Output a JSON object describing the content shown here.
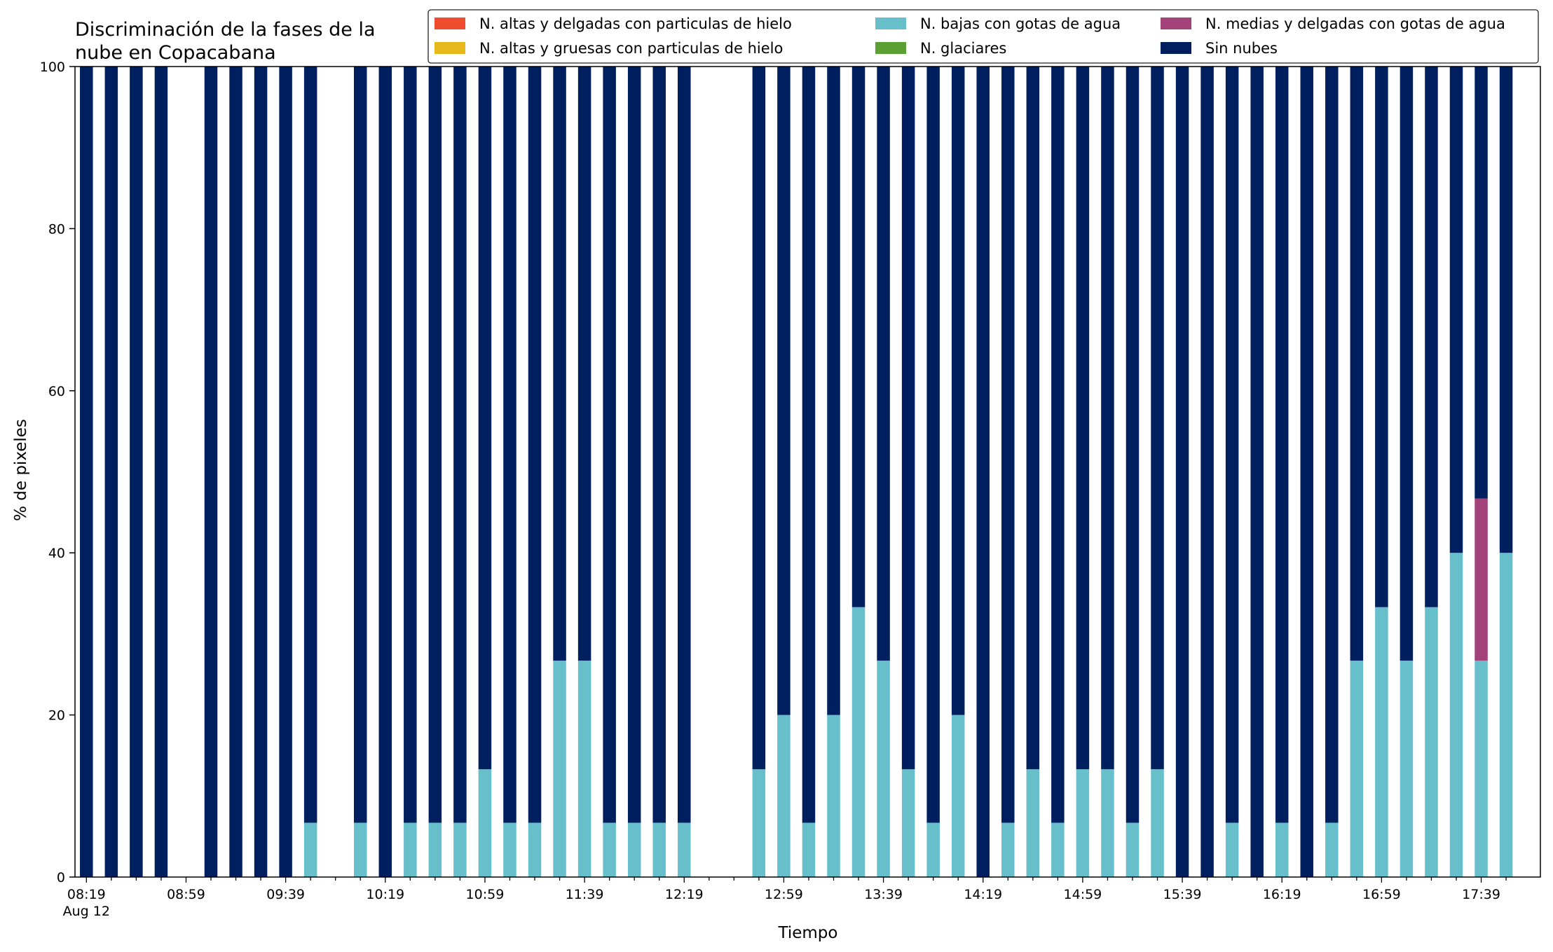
{
  "chart_data": {
    "type": "bar",
    "stacked": true,
    "title_lines": [
      "Discriminación de la fases de la",
      "nube en Copacabana"
    ],
    "xlabel": "Tiempo",
    "ylabel": "% de pixeles",
    "ylim": [
      0,
      100
    ],
    "yticks": [
      0,
      20,
      40,
      60,
      80,
      100
    ],
    "grid": false,
    "legend_position": "top-right",
    "x_start": "08:19",
    "x_step_minutes": 10,
    "x_count": 58,
    "major_tick_labels": [
      {
        "slot": 0,
        "label": "08:19",
        "sublabel": "Aug 12"
      },
      {
        "slot": 4,
        "label": "08:59"
      },
      {
        "slot": 8,
        "label": "09:39"
      },
      {
        "slot": 12,
        "label": "10:19"
      },
      {
        "slot": 16,
        "label": "10:59"
      },
      {
        "slot": 20,
        "label": "11:39"
      },
      {
        "slot": 24,
        "label": "12:19"
      },
      {
        "slot": 28,
        "label": "12:59"
      },
      {
        "slot": 32,
        "label": "13:39"
      },
      {
        "slot": 36,
        "label": "14:19"
      },
      {
        "slot": 40,
        "label": "14:59"
      },
      {
        "slot": 44,
        "label": "15:39"
      },
      {
        "slot": 48,
        "label": "16:19"
      },
      {
        "slot": 52,
        "label": "16:59"
      },
      {
        "slot": 56,
        "label": "17:39"
      }
    ],
    "series": [
      {
        "name": "N. altas y delgadas con particulas de hielo",
        "color": "#ee4d2d"
      },
      {
        "name": "N. altas y gruesas con particulas de hielo",
        "color": "#e6b81b"
      },
      {
        "name": "N. bajas con gotas de agua",
        "color": "#67bfcb"
      },
      {
        "name": "N. glaciares",
        "color": "#5ba032"
      },
      {
        "name": "N. medias y delgadas con gotas de agua",
        "color": "#a2417a"
      },
      {
        "name": "Sin nubes",
        "color": "#001f5f"
      }
    ],
    "bars": [
      {
        "slot": 0,
        "bajas": 0,
        "medias": 0,
        "sin_nubes": 100
      },
      {
        "slot": 1,
        "bajas": 0,
        "medias": 0,
        "sin_nubes": 100
      },
      {
        "slot": 2,
        "bajas": 0,
        "medias": 0,
        "sin_nubes": 100
      },
      {
        "slot": 3,
        "bajas": 0,
        "medias": 0,
        "sin_nubes": 100
      },
      {
        "slot": 5,
        "bajas": 0,
        "medias": 0,
        "sin_nubes": 100
      },
      {
        "slot": 6,
        "bajas": 0,
        "medias": 0,
        "sin_nubes": 100
      },
      {
        "slot": 7,
        "bajas": 0,
        "medias": 0,
        "sin_nubes": 100
      },
      {
        "slot": 8,
        "bajas": 0,
        "medias": 0,
        "sin_nubes": 100
      },
      {
        "slot": 9,
        "bajas": 6.7,
        "medias": 0,
        "sin_nubes": 93.3
      },
      {
        "slot": 11,
        "bajas": 6.7,
        "medias": 0,
        "sin_nubes": 93.3
      },
      {
        "slot": 12,
        "bajas": 0,
        "medias": 0,
        "sin_nubes": 100
      },
      {
        "slot": 13,
        "bajas": 6.7,
        "medias": 0,
        "sin_nubes": 93.3
      },
      {
        "slot": 14,
        "bajas": 6.7,
        "medias": 0,
        "sin_nubes": 93.3
      },
      {
        "slot": 15,
        "bajas": 6.7,
        "medias": 0,
        "sin_nubes": 93.3
      },
      {
        "slot": 16,
        "bajas": 13.3,
        "medias": 0,
        "sin_nubes": 86.7
      },
      {
        "slot": 17,
        "bajas": 6.7,
        "medias": 0,
        "sin_nubes": 93.3
      },
      {
        "slot": 18,
        "bajas": 6.7,
        "medias": 0,
        "sin_nubes": 93.3
      },
      {
        "slot": 19,
        "bajas": 26.7,
        "medias": 0,
        "sin_nubes": 73.3
      },
      {
        "slot": 20,
        "bajas": 26.7,
        "medias": 0,
        "sin_nubes": 73.3
      },
      {
        "slot": 21,
        "bajas": 6.7,
        "medias": 0,
        "sin_nubes": 93.3
      },
      {
        "slot": 22,
        "bajas": 6.7,
        "medias": 0,
        "sin_nubes": 93.3
      },
      {
        "slot": 23,
        "bajas": 6.7,
        "medias": 0,
        "sin_nubes": 93.3
      },
      {
        "slot": 24,
        "bajas": 6.7,
        "medias": 0,
        "sin_nubes": 93.3
      },
      {
        "slot": 27,
        "bajas": 13.3,
        "medias": 0,
        "sin_nubes": 86.7
      },
      {
        "slot": 28,
        "bajas": 20,
        "medias": 0,
        "sin_nubes": 80
      },
      {
        "slot": 29,
        "bajas": 6.7,
        "medias": 0,
        "sin_nubes": 93.3
      },
      {
        "slot": 30,
        "bajas": 20,
        "medias": 0,
        "sin_nubes": 80
      },
      {
        "slot": 31,
        "bajas": 33.3,
        "medias": 0,
        "sin_nubes": 66.7
      },
      {
        "slot": 32,
        "bajas": 26.7,
        "medias": 0,
        "sin_nubes": 73.3
      },
      {
        "slot": 33,
        "bajas": 13.3,
        "medias": 0,
        "sin_nubes": 86.7
      },
      {
        "slot": 34,
        "bajas": 6.7,
        "medias": 0,
        "sin_nubes": 93.3
      },
      {
        "slot": 35,
        "bajas": 20,
        "medias": 0,
        "sin_nubes": 80
      },
      {
        "slot": 36,
        "bajas": 0,
        "medias": 0,
        "sin_nubes": 100
      },
      {
        "slot": 37,
        "bajas": 6.7,
        "medias": 0,
        "sin_nubes": 93.3
      },
      {
        "slot": 38,
        "bajas": 13.3,
        "medias": 0,
        "sin_nubes": 86.7
      },
      {
        "slot": 39,
        "bajas": 6.7,
        "medias": 0,
        "sin_nubes": 93.3
      },
      {
        "slot": 40,
        "bajas": 13.3,
        "medias": 0,
        "sin_nubes": 86.7
      },
      {
        "slot": 41,
        "bajas": 13.3,
        "medias": 0,
        "sin_nubes": 86.7
      },
      {
        "slot": 42,
        "bajas": 6.7,
        "medias": 0,
        "sin_nubes": 93.3
      },
      {
        "slot": 43,
        "bajas": 13.3,
        "medias": 0,
        "sin_nubes": 86.7
      },
      {
        "slot": 44,
        "bajas": 0,
        "medias": 0,
        "sin_nubes": 100
      },
      {
        "slot": 45,
        "bajas": 0,
        "medias": 0,
        "sin_nubes": 100
      },
      {
        "slot": 46,
        "bajas": 6.7,
        "medias": 0,
        "sin_nubes": 93.3
      },
      {
        "slot": 47,
        "bajas": 0,
        "medias": 0,
        "sin_nubes": 100
      },
      {
        "slot": 48,
        "bajas": 6.7,
        "medias": 0,
        "sin_nubes": 93.3
      },
      {
        "slot": 49,
        "bajas": 0,
        "medias": 0,
        "sin_nubes": 100
      },
      {
        "slot": 50,
        "bajas": 6.7,
        "medias": 0,
        "sin_nubes": 93.3
      },
      {
        "slot": 51,
        "bajas": 26.7,
        "medias": 0,
        "sin_nubes": 73.3
      },
      {
        "slot": 52,
        "bajas": 33.3,
        "medias": 0,
        "sin_nubes": 66.7
      },
      {
        "slot": 53,
        "bajas": 26.7,
        "medias": 0,
        "sin_nubes": 73.3
      },
      {
        "slot": 54,
        "bajas": 33.3,
        "medias": 0,
        "sin_nubes": 66.7
      },
      {
        "slot": 55,
        "bajas": 40,
        "medias": 0,
        "sin_nubes": 60
      },
      {
        "slot": 56,
        "bajas": 26.7,
        "medias": 20,
        "sin_nubes": 53.3
      },
      {
        "slot": 57,
        "bajas": 40,
        "medias": 0,
        "sin_nubes": 60
      }
    ]
  }
}
